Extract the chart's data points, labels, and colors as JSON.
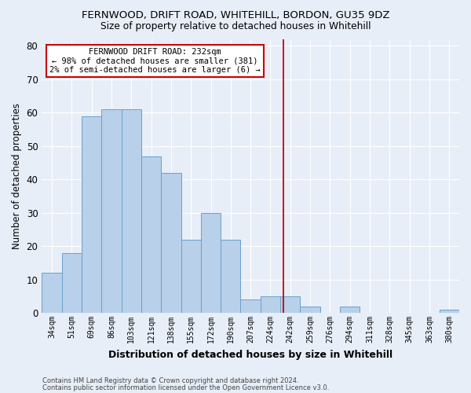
{
  "title_line1": "FERNWOOD, DRIFT ROAD, WHITEHILL, BORDON, GU35 9DZ",
  "title_line2": "Size of property relative to detached houses in Whitehill",
  "xlabel": "Distribution of detached houses by size in Whitehill",
  "ylabel": "Number of detached properties",
  "categories": [
    "34sqm",
    "51sqm",
    "69sqm",
    "86sqm",
    "103sqm",
    "121sqm",
    "138sqm",
    "155sqm",
    "172sqm",
    "190sqm",
    "207sqm",
    "224sqm",
    "242sqm",
    "259sqm",
    "276sqm",
    "294sqm",
    "311sqm",
    "328sqm",
    "345sqm",
    "363sqm",
    "380sqm"
  ],
  "values": [
    12,
    18,
    59,
    61,
    61,
    47,
    42,
    22,
    30,
    22,
    4,
    5,
    5,
    2,
    0,
    2,
    0,
    0,
    0,
    0,
    1
  ],
  "bar_color": "#b8d0ea",
  "bar_edge_color": "#6aa0cc",
  "vline_x": 11.65,
  "vline_color": "#cc0000",
  "annotation_title": "FERNWOOD DRIFT ROAD: 232sqm",
  "annotation_line1": "← 98% of detached houses are smaller (381)",
  "annotation_line2": "2% of semi-detached houses are larger (6) →",
  "annotation_box_color": "#cc0000",
  "ylim": [
    0,
    82
  ],
  "yticks": [
    0,
    10,
    20,
    30,
    40,
    50,
    60,
    70,
    80
  ],
  "footer_line1": "Contains HM Land Registry data © Crown copyright and database right 2024.",
  "footer_line2": "Contains public sector information licensed under the Open Government Licence v3.0.",
  "background_color": "#e8eef8",
  "grid_color": "#ffffff"
}
